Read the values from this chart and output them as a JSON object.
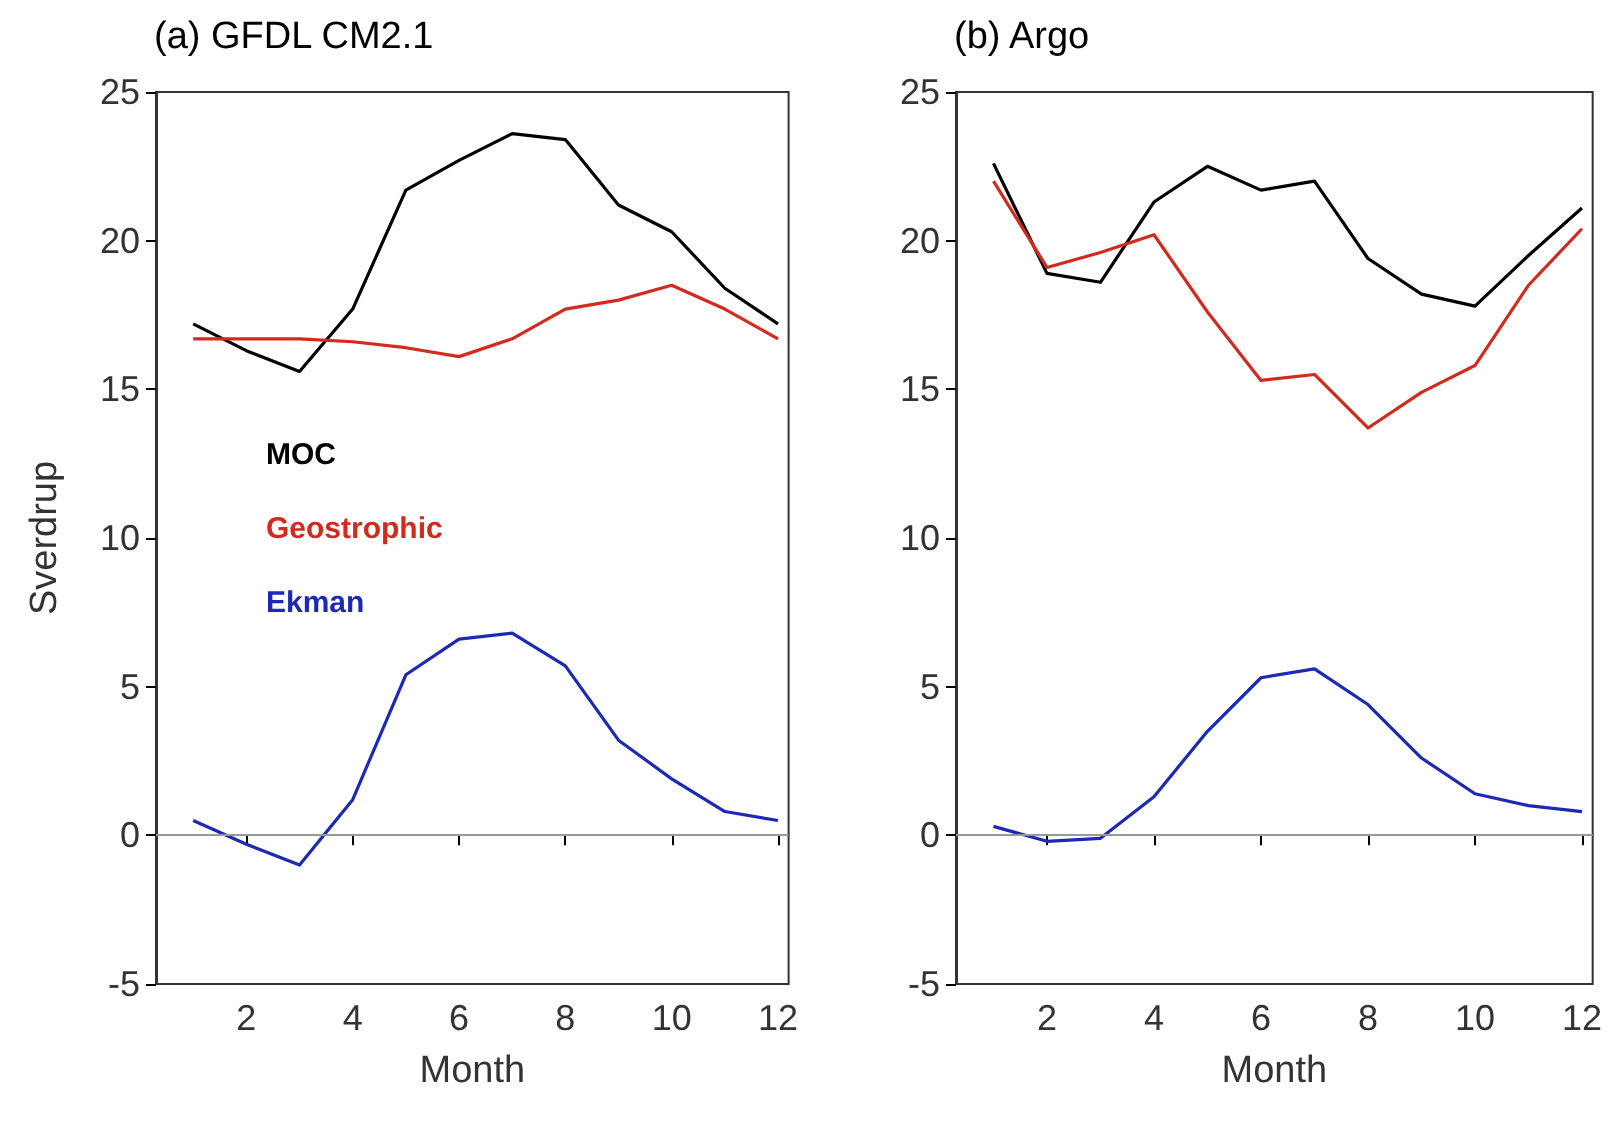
{
  "chart_data": [
    {
      "type": "line",
      "title": "(a) GFDL CM2.1",
      "xlabel": "Month",
      "ylabel": "Sverdrup",
      "x": [
        1,
        2,
        3,
        4,
        5,
        6,
        7,
        8,
        9,
        10,
        11,
        12
      ],
      "xlim": [
        0.3,
        12.2
      ],
      "xticks": [
        2,
        4,
        6,
        8,
        10,
        12
      ],
      "ylim": [
        -5,
        25
      ],
      "yticks": [
        -5,
        0,
        5,
        10,
        15,
        20,
        25
      ],
      "grid": false,
      "legend": "left",
      "marker": "none",
      "series": [
        {
          "name": "MOC",
          "color": "#000000",
          "values": [
            17.2,
            16.3,
            15.6,
            17.7,
            21.7,
            22.7,
            23.6,
            23.4,
            21.2,
            20.3,
            18.4,
            17.2
          ]
        },
        {
          "name": "Geostrophic",
          "color": "#d42a1e",
          "values": [
            16.7,
            16.7,
            16.7,
            16.6,
            16.4,
            16.1,
            16.7,
            17.7,
            18.0,
            18.5,
            17.7,
            16.7
          ]
        },
        {
          "name": "Ekman",
          "color": "#1c28b8",
          "values": [
            0.5,
            -0.3,
            -1.0,
            1.2,
            5.4,
            6.6,
            6.8,
            5.7,
            3.2,
            1.9,
            0.8,
            0.5
          ]
        }
      ],
      "ref_lines": [
        {
          "axis": "y",
          "value": 0,
          "color": "#999999"
        }
      ]
    },
    {
      "type": "line",
      "title": "(b) Argo",
      "xlabel": "Month",
      "x": [
        1,
        2,
        3,
        4,
        5,
        6,
        7,
        8,
        9,
        10,
        11,
        12
      ],
      "xlim": [
        0.3,
        12.2
      ],
      "xticks": [
        2,
        4,
        6,
        8,
        10,
        12
      ],
      "ylim": [
        -5,
        25
      ],
      "yticks": [
        -5,
        0,
        5,
        10,
        15,
        20,
        25
      ],
      "grid": false,
      "legend": false,
      "marker": "none",
      "series": [
        {
          "color": "#000000",
          "values": [
            22.6,
            18.9,
            18.6,
            21.3,
            22.5,
            21.7,
            22.0,
            19.4,
            18.2,
            17.8,
            19.5,
            21.1
          ]
        },
        {
          "color": "#d42a1e",
          "values": [
            22.0,
            19.1,
            19.6,
            20.2,
            17.6,
            15.3,
            15.5,
            13.7,
            14.9,
            15.8,
            18.5,
            20.4
          ]
        },
        {
          "color": "#1c28b8",
          "values": [
            0.3,
            -0.2,
            -0.1,
            1.3,
            3.5,
            5.3,
            5.6,
            4.4,
            2.6,
            1.4,
            1.0,
            0.8
          ]
        }
      ],
      "ref_lines": [
        {
          "axis": "y",
          "value": 0,
          "color": "#999999"
        }
      ]
    }
  ]
}
